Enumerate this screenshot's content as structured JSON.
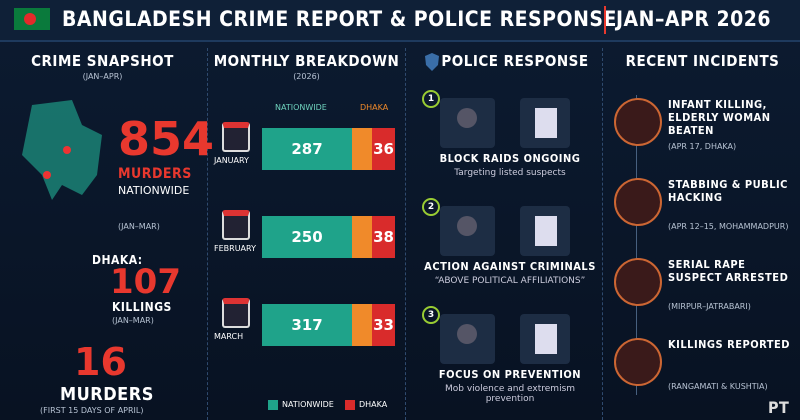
{
  "header": {
    "title": "BANGLADESH CRIME REPORT & POLICE RESPONSE",
    "period": "JAN–APR 2026"
  },
  "snapshot": {
    "title": "CRIME SNAPSHOT",
    "subtitle": "(JAN–APR)",
    "nationwide": {
      "value": 854,
      "label": "MURDERS",
      "scope": "NATIONWIDE",
      "period": "(JAN–MAR)"
    },
    "dhaka": {
      "prefix": "DHAKA:",
      "value": 107,
      "label": "KILLINGS",
      "period": "(JAN–MAR)"
    },
    "april": {
      "value": 16,
      "label": "MURDERS",
      "period": "(FIRST 15 DAYS OF APRIL)"
    }
  },
  "monthly": {
    "title": "MONTHLY BREAKDOWN",
    "subtitle": "(2026)",
    "col_nationwide": "NATIONWIDE",
    "col_dhaka": "DHAKA",
    "rows": [
      {
        "month": "JANUARY",
        "nationwide": 287,
        "dhaka": 36
      },
      {
        "month": "FEBRUARY",
        "nationwide": 250,
        "dhaka": 38
      },
      {
        "month": "MARCH",
        "nationwide": 317,
        "dhaka": 33
      }
    ],
    "legend": [
      "NATIONWIDE",
      "DHAKA"
    ]
  },
  "police": {
    "title": "POLICE RESPONSE",
    "items": [
      {
        "num": 1,
        "heading": "BLOCK RAIDS ONGOING",
        "text": "Targeting listed suspects"
      },
      {
        "num": 2,
        "heading": "ACTION AGAINST CRIMINALS",
        "text": "“ABOVE POLITICAL AFFILIATIONS”"
      },
      {
        "num": 3,
        "heading": "FOCUS ON PREVENTION",
        "text": "Mob violence and extremism prevention"
      }
    ]
  },
  "incidents": {
    "title": "RECENT INCIDENTS",
    "items": [
      {
        "heading": "INFANT KILLING, ELDERLY WOMAN BEATEN",
        "detail": "(APR 17, DHAKA)"
      },
      {
        "heading": "STABBING & PUBLIC HACKING",
        "detail": "(APR 12–15, MOHAMMADPUR)"
      },
      {
        "heading": "SERIAL RAPE SUSPECT ARRESTED",
        "detail": "(MIRPUR–JATRABARI)"
      },
      {
        "heading": "KILLINGS REPORTED",
        "detail": "(RANGAMATI & KUSHTIA)"
      }
    ]
  },
  "footer": {
    "logo": "PT"
  }
}
